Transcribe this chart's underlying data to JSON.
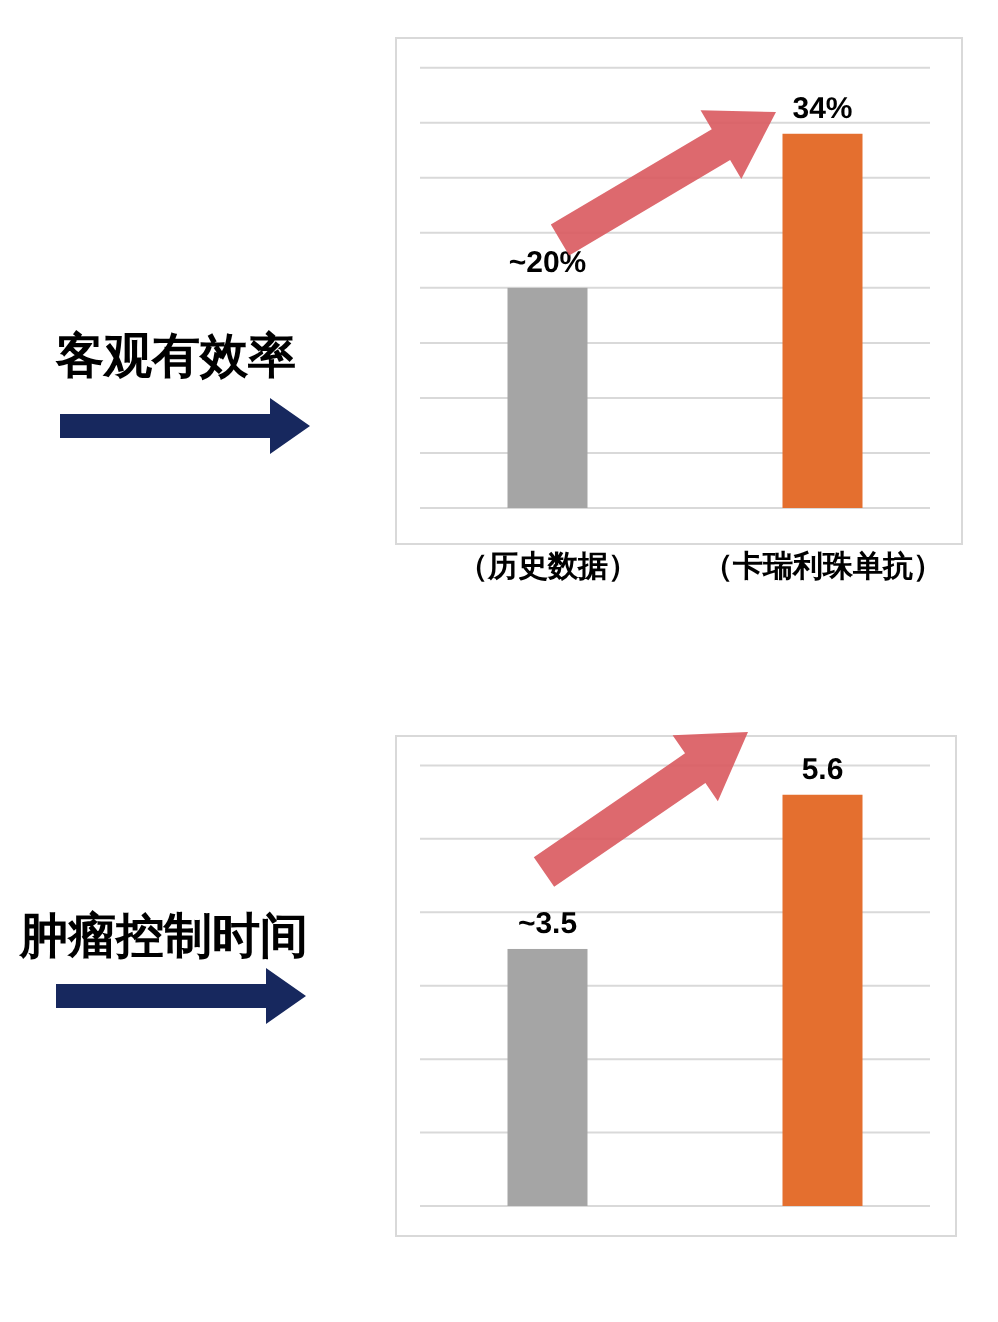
{
  "chart_data": [
    {
      "type": "bar",
      "title": "客观有效率",
      "categories": [
        "（历史数据）",
        "（卡瑞利珠单抗）"
      ],
      "values": [
        20,
        34
      ],
      "colors": [
        "#a5a5a5",
        "#e46f2f"
      ],
      "value_labels": [
        "~20%",
        "34%"
      ],
      "ylim": [
        0,
        42.7
      ],
      "yticks": [
        {
          "value": 0,
          "label": null
        },
        {
          "value": 5,
          "label": null
        },
        {
          "value": 10,
          "label": null
        },
        {
          "value": 15,
          "label": null
        },
        {
          "value": 20,
          "label": null
        },
        {
          "value": 25,
          "label": null
        },
        {
          "value": 30,
          "label": null
        },
        {
          "value": 35,
          "label": null
        },
        {
          "value": 40,
          "label": null
        }
      ],
      "grid": "y",
      "tick_labels": "x"
    },
    {
      "type": "bar",
      "title": "肿瘤控制时间",
      "categories": [
        null,
        null
      ],
      "values": [
        3.5,
        5.6
      ],
      "colors": [
        "#a5a5a5",
        "#e46f2f"
      ],
      "value_labels": [
        "~3.5",
        "5.6"
      ],
      "ylim": [
        0,
        6.4
      ],
      "yticks": [
        {
          "value": 0,
          "label": null
        },
        {
          "value": 1,
          "label": null
        },
        {
          "value": 2,
          "label": null
        },
        {
          "value": 3,
          "label": null
        },
        {
          "value": 4,
          "label": null
        },
        {
          "value": 5,
          "label": null
        },
        {
          "value": 6,
          "label": null
        }
      ],
      "grid": "y",
      "tick_labels": false
    }
  ]
}
